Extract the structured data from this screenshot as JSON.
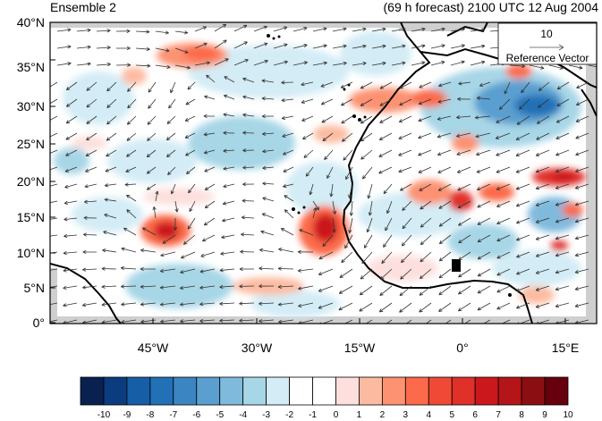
{
  "title_left": "Ensemble 2",
  "title_right": "(69 h forecast) 2100 UTC 12 Aug 2004",
  "lat_labels": [
    "40°N",
    "35°N",
    "30°N",
    "25°N",
    "20°N",
    "15°N",
    "10°N",
    "5°N",
    "0°"
  ],
  "lon_labels": [
    "45°W",
    "30°W",
    "15°W",
    "0°",
    "15°E"
  ],
  "reference_vector": {
    "value": "10",
    "label": "Reference Vector"
  },
  "colorbar": {
    "labels": [
      "-10",
      "-9",
      "-8",
      "-7",
      "-6",
      "-5",
      "-4",
      "-3",
      "-2",
      "-1",
      "0",
      "1",
      "2",
      "3",
      "4",
      "5",
      "6",
      "7",
      "8",
      "9",
      "10"
    ],
    "colors": [
      "#08214f",
      "#0b3c80",
      "#165ea6",
      "#2270b6",
      "#3b85c2",
      "#5a9fd0",
      "#7fbadd",
      "#a7d6e6",
      "#d3ecf5",
      "#ffffff",
      "#ffffff",
      "#fde0dd",
      "#fcbba1",
      "#fc9272",
      "#fb6a4a",
      "#f04a36",
      "#e0302a",
      "#cb181d",
      "#b31519",
      "#8b0f12",
      "#67000d"
    ]
  },
  "colors": {
    "land_gray": "#cfcfcf",
    "coast": "#000000",
    "vector": "#333333"
  }
}
